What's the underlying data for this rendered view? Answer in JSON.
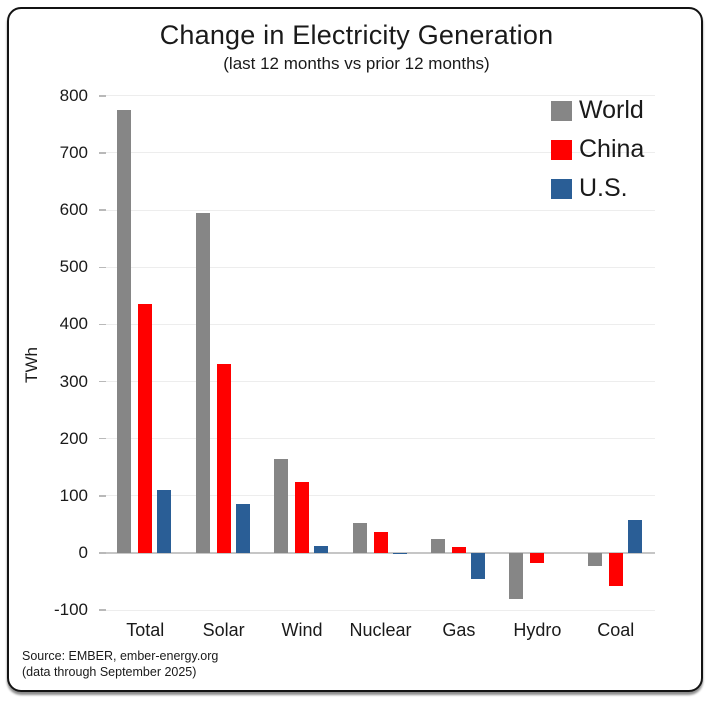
{
  "title": "Change in Electricity Generation",
  "subtitle": "(last 12 months vs prior 12 months)",
  "source": {
    "line1": "Source: EMBER, ember-energy.org",
    "line2": "(data through September 2025)"
  },
  "colors": {
    "world": "#868686",
    "china": "#ff0000",
    "us": "#2a5e96",
    "gridline": "#ededed",
    "zero_line": "#c6c6c6",
    "frame_border": "#131313"
  },
  "chart_data": {
    "type": "bar",
    "title": "Change in Electricity Generation",
    "subtitle": "(last 12 months vs prior 12 months)",
    "ylabel": "TWh",
    "xlabel": "",
    "categories": [
      "Total",
      "Solar",
      "Wind",
      "Nuclear",
      "Gas",
      "Hydro",
      "Coal"
    ],
    "series": [
      {
        "name": "World",
        "color": "#868686",
        "values": [
          775,
          595,
          165,
          52,
          25,
          -80,
          -22
        ]
      },
      {
        "name": "China",
        "color": "#ff0000",
        "values": [
          435,
          330,
          125,
          36,
          10,
          -17,
          -58
        ]
      },
      {
        "name": "U.S.",
        "color": "#2a5e96",
        "values": [
          110,
          85,
          13,
          -2,
          -45,
          0,
          58
        ]
      }
    ],
    "ylim": [
      -100,
      800
    ],
    "yticks": [
      800,
      700,
      600,
      500,
      400,
      300,
      200,
      100,
      0,
      -100
    ],
    "grid": true,
    "legend_position": "top-right"
  }
}
